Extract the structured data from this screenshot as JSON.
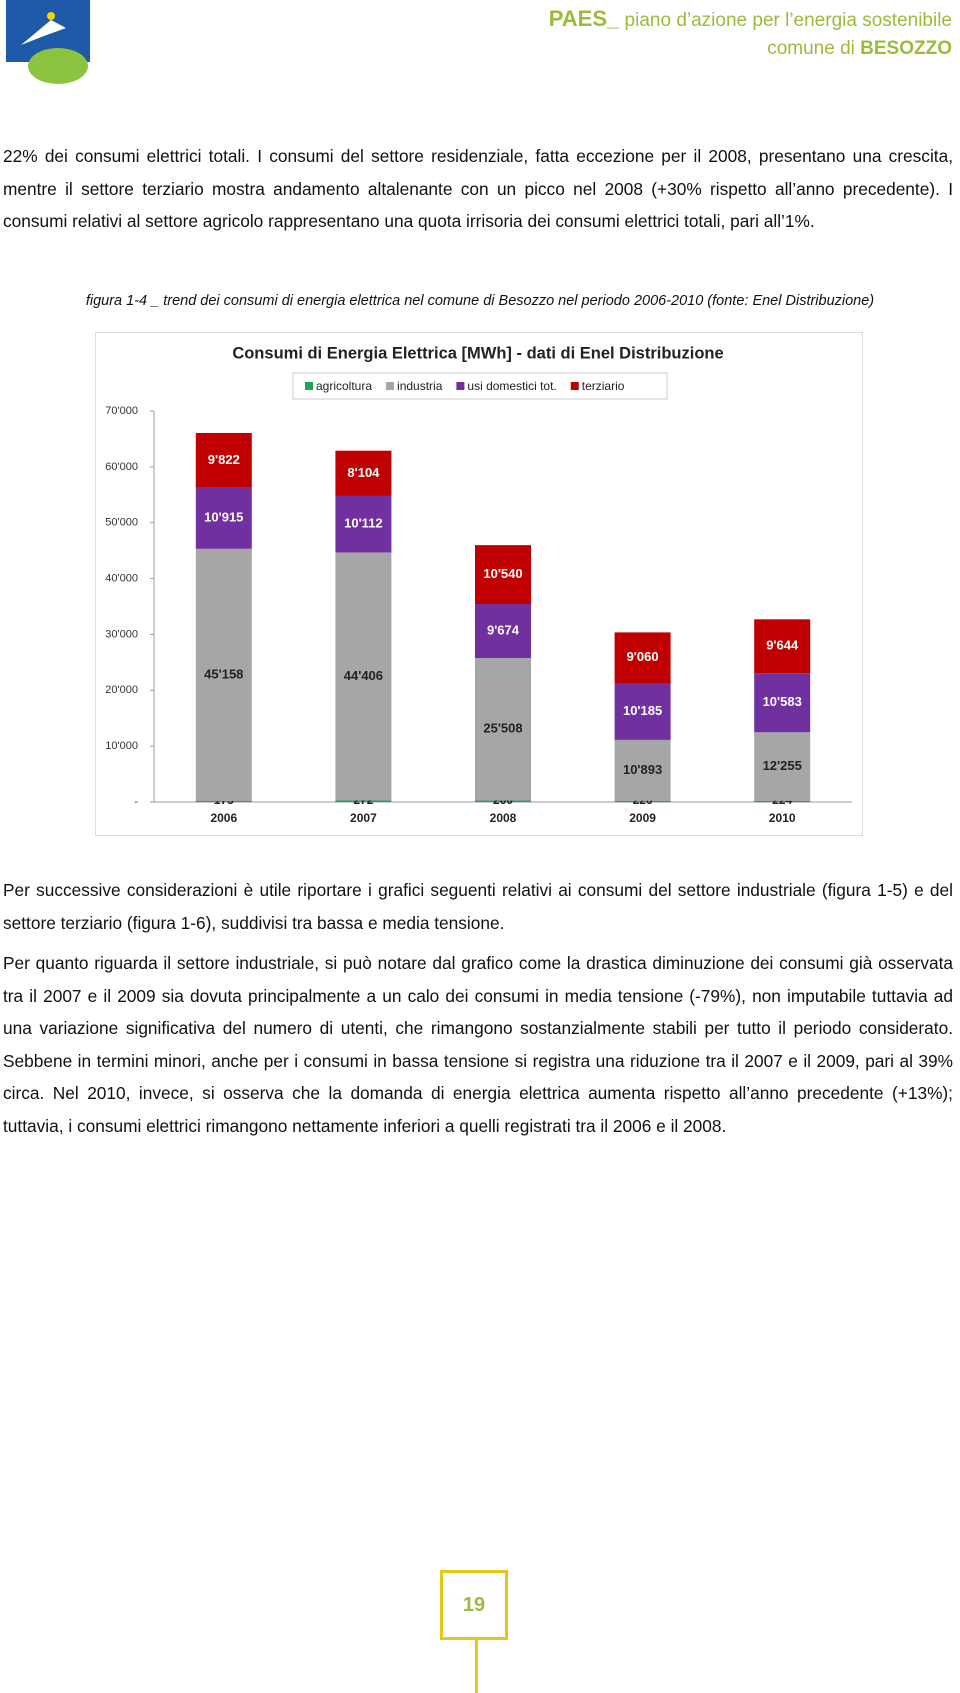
{
  "header": {
    "acronym": "PAES_",
    "title": "piano d’azione per l’energia sostenibile",
    "municipality_prefix": "comune di",
    "municipality": "BESOZZO"
  },
  "paragraphs": [
    "22% dei consumi elettrici totali. I consumi del settore residenziale, fatta eccezione per il 2008, presentano una crescita, mentre il settore terziario mostra andamento altalenante con un picco nel 2008 (+30% rispetto all’anno precedente). I consumi relativi al settore agricolo rappresentano una quota irrisoria dei consumi elettrici totali, pari all’1%.",
    "Per successive considerazioni è utile riportare i grafici seguenti relativi ai consumi del settore industriale (figura 1-5) e del settore terziario (figura 1-6), suddivisi tra bassa e media tensione.",
    "Per quanto riguarda il settore industriale, si può notare dal grafico come la drastica diminuzione dei consumi già osservata tra il 2007 e il 2009 sia dovuta principalmente a un calo dei consumi in media tensione (-79%), non imputabile tuttavia ad una variazione significativa del numero di utenti, che rimangono sostanzialmente stabili per tutto il periodo considerato. Sebbene in termini minori, anche per i consumi in bassa tensione si registra una riduzione tra il 2007 e il 2009, pari al 39% circa. Nel 2010, invece, si osserva che la domanda di energia elettrica aumenta rispetto all’anno precedente (+13%); tuttavia, i consumi elettrici rimangono nettamente inferiori a quelli registrati tra il 2006 e il 2008."
  ],
  "figure_caption": "figura 1-4 _ trend dei consumi di energia elettrica nel comune di Besozzo nel periodo 2006-2010 (fonte: Enel Distribuzione)",
  "chart_data": {
    "type": "stacked_bar",
    "title": "Consumi di Energia Elettrica [MWh] - dati di Enel Distribuzione",
    "categories": [
      "2006",
      "2007",
      "2008",
      "2009",
      "2010"
    ],
    "series": [
      {
        "name": "agricoltura",
        "color": "#1aa55a",
        "values": [
          175,
          272,
          260,
          226,
          224
        ]
      },
      {
        "name": "industria",
        "color": "#a6a6a6",
        "values": [
          45158,
          44406,
          25508,
          10893,
          12255
        ],
        "value_labels": [
          "45'158",
          "44'406",
          "25'508",
          "10'893",
          "12'255"
        ]
      },
      {
        "name": "usi domestici tot.",
        "color": "#7030a0",
        "values": [
          10915,
          10112,
          9674,
          10185,
          10583
        ],
        "value_labels": [
          "10'915",
          "10'112",
          "9'674",
          "10'185",
          "10'583"
        ]
      },
      {
        "name": "terziario",
        "color": "#c00000",
        "values": [
          9822,
          8104,
          10540,
          9060,
          9644
        ],
        "value_labels": [
          "9'822",
          "8'104",
          "10'540",
          "9'060",
          "9'644"
        ]
      }
    ],
    "ylim": [
      0,
      70000
    ],
    "yticks": [
      {
        "value": 0,
        "label": "-"
      },
      {
        "value": 10000,
        "label": "10'000"
      },
      {
        "value": 20000,
        "label": "20'000"
      },
      {
        "value": 30000,
        "label": "30'000"
      },
      {
        "value": 40000,
        "label": "40'000"
      },
      {
        "value": 50000,
        "label": "50'000"
      },
      {
        "value": 60000,
        "label": "60'000"
      },
      {
        "value": 70000,
        "label": "70'000"
      }
    ],
    "grid": false,
    "legend": "top"
  },
  "page_number": "19"
}
